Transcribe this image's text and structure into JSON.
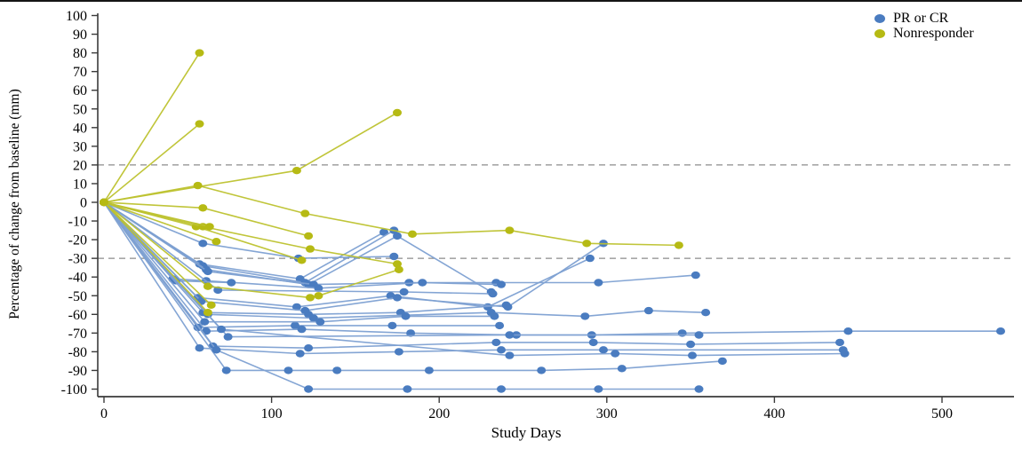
{
  "chart_data": {
    "type": "line",
    "description": "Spider plot of tumor size percentage change from baseline over study days, one polyline per patient",
    "xlabel": "Study Days",
    "ylabel": "Percentage of change from baseline (mm)",
    "xlim": [
      0,
      545
    ],
    "ylim": [
      -100,
      100
    ],
    "x_ticks": [
      0,
      100,
      200,
      300,
      400,
      500
    ],
    "y_ticks": [
      100,
      90,
      80,
      70,
      60,
      50,
      40,
      30,
      20,
      10,
      0,
      -10,
      -20,
      -30,
      -40,
      -50,
      -60,
      -70,
      -80,
      -90,
      -100
    ],
    "grid": false,
    "legend_position": "top-right",
    "reference_lines": {
      "values": [
        20,
        -30
      ],
      "style": "dashed",
      "color": "#8c8c8c"
    },
    "axis_color": "#3a3a3a",
    "series": [
      {
        "name": "PR or CR",
        "marker_color": "#4a7cc0",
        "line_color": "#7da0d2",
        "patients": [
          [
            [
              0,
              0
            ],
            [
              59,
              -22
            ],
            [
              116,
              -30
            ],
            [
              173,
              -29
            ]
          ],
          [
            [
              0,
              0
            ],
            [
              57,
              -33
            ],
            [
              117,
              -41
            ],
            [
              167,
              -16
            ]
          ],
          [
            [
              0,
              0
            ],
            [
              59,
              -34
            ],
            [
              120,
              -43
            ],
            [
              173,
              -15
            ]
          ],
          [
            [
              0,
              0
            ],
            [
              61,
              -36
            ],
            [
              122,
              -44
            ],
            [
              175,
              -18
            ],
            [
              231,
              -48
            ]
          ],
          [
            [
              0,
              0
            ],
            [
              62,
              -37
            ],
            [
              125,
              -44
            ],
            [
              182,
              -43
            ],
            [
              234,
              -43
            ],
            [
              295,
              -43
            ],
            [
              353,
              -39
            ]
          ],
          [
            [
              0,
              0
            ],
            [
              41,
              -41
            ],
            [
              61,
              -42
            ],
            [
              128,
              -46
            ],
            [
              190,
              -43
            ],
            [
              237,
              -44
            ]
          ],
          [
            [
              0,
              0
            ],
            [
              43,
              -42
            ],
            [
              76,
              -43
            ]
          ],
          [
            [
              0,
              0
            ],
            [
              68,
              -47
            ],
            [
              179,
              -48
            ],
            [
              232,
              -49
            ]
          ],
          [
            [
              0,
              0
            ],
            [
              56,
              -51
            ],
            [
              115,
              -56
            ],
            [
              171,
              -50
            ],
            [
              229,
              -56
            ],
            [
              290,
              -30
            ]
          ],
          [
            [
              0,
              0
            ],
            [
              58,
              -53
            ],
            [
              120,
              -58
            ],
            [
              175,
              -51
            ],
            [
              241,
              -56
            ],
            [
              298,
              -22
            ]
          ],
          [
            [
              0,
              0
            ],
            [
              59,
              -59
            ],
            [
              122,
              -60
            ],
            [
              177,
              -59
            ],
            [
              240,
              -55
            ]
          ],
          [
            [
              0,
              0
            ],
            [
              62,
              -60
            ],
            [
              125,
              -62
            ],
            [
              231,
              -59
            ],
            [
              287,
              -61
            ],
            [
              325,
              -58
            ],
            [
              359,
              -59
            ]
          ],
          [
            [
              0,
              0
            ],
            [
              56,
              -67
            ],
            [
              114,
              -66
            ],
            [
              172,
              -66
            ],
            [
              236,
              -66
            ]
          ],
          [
            [
              0,
              0
            ],
            [
              60,
              -64
            ],
            [
              129,
              -64
            ],
            [
              180,
              -61
            ],
            [
              233,
              -61
            ]
          ],
          [
            [
              0,
              0
            ],
            [
              61,
              -69
            ],
            [
              118,
              -68
            ],
            [
              183,
              -70
            ],
            [
              246,
              -71
            ],
            [
              291,
              -71
            ],
            [
              345,
              -70
            ],
            [
              444,
              -69
            ],
            [
              535,
              -69
            ]
          ],
          [
            [
              0,
              0
            ],
            [
              74,
              -72
            ],
            [
              242,
              -71
            ],
            [
              355,
              -71
            ]
          ],
          [
            [
              0,
              0
            ],
            [
              65,
              -77
            ],
            [
              122,
              -78
            ],
            [
              234,
              -75
            ],
            [
              292,
              -75
            ],
            [
              350,
              -76
            ],
            [
              439,
              -75
            ]
          ],
          [
            [
              0,
              0
            ],
            [
              57,
              -78
            ],
            [
              117,
              -81
            ],
            [
              176,
              -80
            ],
            [
              237,
              -79
            ],
            [
              298,
              -79
            ],
            [
              441,
              -79
            ]
          ],
          [
            [
              0,
              0
            ],
            [
              70,
              -68
            ],
            [
              242,
              -82
            ],
            [
              305,
              -81
            ],
            [
              351,
              -82
            ],
            [
              442,
              -81
            ]
          ],
          [
            [
              0,
              0
            ],
            [
              73,
              -90
            ],
            [
              110,
              -90
            ],
            [
              139,
              -90
            ],
            [
              194,
              -90
            ],
            [
              261,
              -90
            ],
            [
              309,
              -89
            ],
            [
              369,
              -85
            ]
          ],
          [
            [
              0,
              0
            ],
            [
              67,
              -79
            ],
            [
              122,
              -100
            ],
            [
              181,
              -100
            ],
            [
              237,
              -100
            ],
            [
              295,
              -100
            ],
            [
              355,
              -100
            ]
          ]
        ]
      },
      {
        "name": "Nonresponder",
        "marker_color": "#b6ba14",
        "line_color": "#bdc22e",
        "patients": [
          [
            [
              0,
              0
            ],
            [
              57,
              80
            ]
          ],
          [
            [
              0,
              0
            ],
            [
              57,
              42
            ]
          ],
          [
            [
              0,
              0
            ],
            [
              115,
              17
            ],
            [
              175,
              48
            ]
          ],
          [
            [
              0,
              0
            ],
            [
              56,
              9
            ],
            [
              120,
              -6
            ],
            [
              184,
              -17
            ],
            [
              242,
              -15
            ],
            [
              288,
              -22
            ],
            [
              343,
              -23
            ]
          ],
          [
            [
              0,
              0
            ],
            [
              59,
              -3
            ],
            [
              122,
              -18
            ]
          ],
          [
            [
              0,
              0
            ],
            [
              55,
              -13
            ],
            [
              118,
              -31
            ]
          ],
          [
            [
              0,
              0
            ],
            [
              59,
              -13
            ],
            [
              123,
              -25
            ],
            [
              175,
              -33
            ]
          ],
          [
            [
              0,
              0
            ],
            [
              63,
              -13
            ]
          ],
          [
            [
              0,
              0
            ],
            [
              67,
              -21
            ]
          ],
          [
            [
              0,
              0
            ],
            [
              62,
              -45
            ],
            [
              123,
              -51
            ],
            [
              128,
              -50
            ],
            [
              176,
              -36
            ]
          ],
          [
            [
              0,
              0
            ],
            [
              64,
              -55
            ]
          ],
          [
            [
              0,
              0
            ],
            [
              62,
              -59
            ]
          ]
        ]
      }
    ]
  }
}
